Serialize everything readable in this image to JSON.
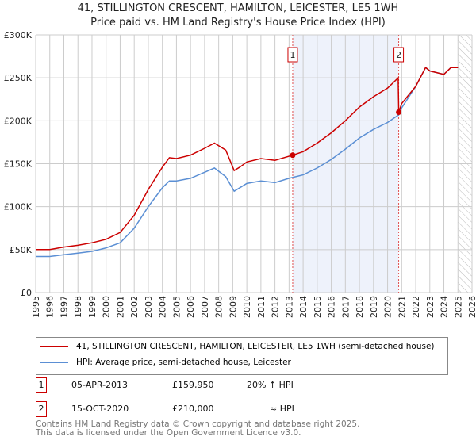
{
  "chart_data": {
    "type": "line",
    "title": "41, STILLINGTON CRESCENT, HAMILTON, LEICESTER, LE5 1WH",
    "subtitle": "Price paid vs. HM Land Registry's House Price Index (HPI)",
    "xlim": [
      1995,
      2026
    ],
    "ylim": [
      0,
      300000
    ],
    "x_ticks": [
      "1995",
      "1996",
      "1997",
      "1998",
      "1999",
      "2000",
      "2001",
      "2002",
      "2003",
      "2004",
      "2005",
      "2006",
      "2007",
      "2008",
      "2009",
      "2010",
      "2011",
      "2012",
      "2013",
      "2014",
      "2015",
      "2016",
      "2017",
      "2018",
      "2019",
      "2020",
      "2021",
      "2022",
      "2023",
      "2024",
      "2025",
      "2026"
    ],
    "y_ticks": [
      {
        "v": 0,
        "label": "£0"
      },
      {
        "v": 50000,
        "label": "£50K"
      },
      {
        "v": 100000,
        "label": "£100K"
      },
      {
        "v": 150000,
        "label": "£150K"
      },
      {
        "v": 200000,
        "label": "£200K"
      },
      {
        "v": 250000,
        "label": "£250K"
      },
      {
        "v": 300000,
        "label": "£300K"
      }
    ],
    "grid": true,
    "shaded_range": [
      2013.26,
      2020.79
    ],
    "hatched_from": 2025.0,
    "series": [
      {
        "name": "41, STILLINGTON CRESCENT, HAMILTON, LEICESTER, LE5 1WH (semi-detached house)",
        "color": "#cc0000",
        "x": [
          1995,
          1996,
          1997,
          1998,
          1999,
          2000,
          2001,
          2002,
          2003,
          2004,
          2004.5,
          2005,
          2006,
          2007,
          2007.7,
          2008.5,
          2009.1,
          2009.5,
          2010,
          2011,
          2012,
          2013.26,
          2014,
          2015,
          2016,
          2017,
          2018,
          2019,
          2020,
          2020.75,
          2020.79,
          2021,
          2022,
          2022.7,
          2023,
          2024,
          2024.5,
          2025
        ],
        "y": [
          50000,
          50000,
          53000,
          55000,
          58000,
          62000,
          70000,
          90000,
          120000,
          146000,
          157000,
          156000,
          160000,
          168000,
          174000,
          166000,
          142000,
          146000,
          152000,
          156000,
          154000,
          159950,
          164000,
          174000,
          186000,
          200000,
          216000,
          228000,
          238000,
          250000,
          210000,
          220000,
          240000,
          262000,
          258000,
          254000,
          262000,
          262000
        ]
      },
      {
        "name": "HPI: Average price, semi-detached house, Leicester",
        "color": "#5b8fd4",
        "x": [
          1995,
          1996,
          1997,
          1998,
          1999,
          2000,
          2001,
          2002,
          2003,
          2004,
          2004.5,
          2005,
          2006,
          2007,
          2007.7,
          2008.5,
          2009.1,
          2009.5,
          2010,
          2011,
          2012,
          2013,
          2014,
          2015,
          2016,
          2017,
          2018,
          2019,
          2020,
          2020.8,
          2021,
          2022,
          2022.7,
          2023,
          2024,
          2024.5,
          2025
        ],
        "y": [
          42000,
          42000,
          44000,
          46000,
          48000,
          52000,
          58000,
          75000,
          100000,
          122000,
          130000,
          130000,
          133000,
          140000,
          145000,
          135000,
          118000,
          122000,
          127000,
          130000,
          128000,
          133000,
          137000,
          145000,
          155000,
          167000,
          180000,
          190000,
          198000,
          207000,
          215000,
          240000,
          262000,
          258000,
          254000,
          262000,
          262000
        ]
      }
    ],
    "annotations": [
      {
        "label": "1",
        "x": 2013.26,
        "y": 159950
      },
      {
        "label": "2",
        "x": 2020.79,
        "y": 210000
      }
    ]
  },
  "legend": {
    "red": "41, STILLINGTON CRESCENT, HAMILTON, LEICESTER, LE5 1WH (semi-detached house)",
    "blue": "HPI: Average price, semi-detached house, Leicester"
  },
  "sales": [
    {
      "num": "1",
      "date": "05-APR-2013",
      "price": "£159,950",
      "hpi": "20% ↑ HPI"
    },
    {
      "num": "2",
      "date": "15-OCT-2020",
      "price": "£210,000",
      "hpi": "≈ HPI"
    }
  ],
  "footer": {
    "line1": "Contains HM Land Registry data © Crown copyright and database right 2025.",
    "line2": "This data is licensed under the Open Government Licence v3.0."
  }
}
